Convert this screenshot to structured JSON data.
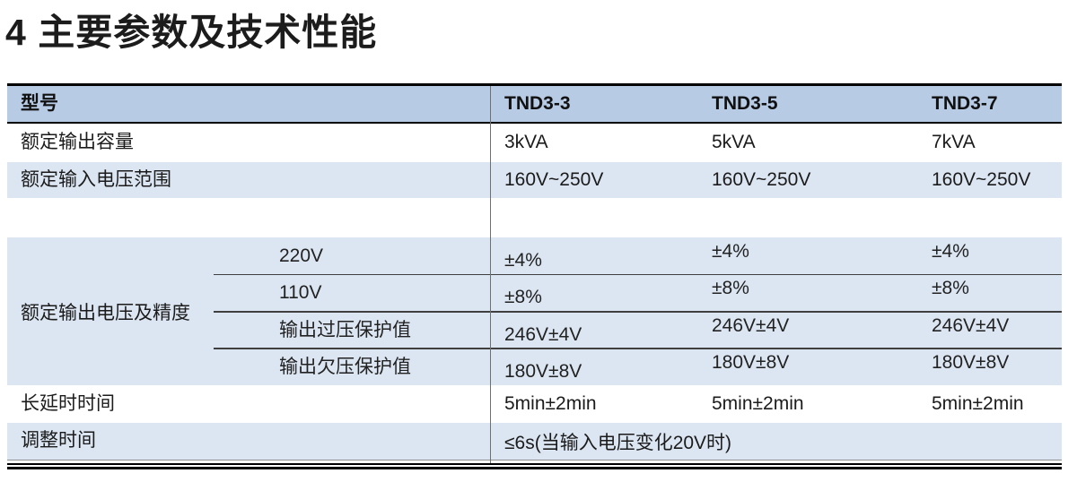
{
  "page": {
    "title": "4 主要参数及技术性能"
  },
  "colors": {
    "header_bg": "#b7cbe5",
    "stripe_bg": "#dce6f2",
    "divider": "#6f6f6f",
    "subline": "#3f3f3f"
  },
  "table": {
    "header": {
      "model_label": "型号",
      "models": [
        "TND3-3",
        "TND3-5",
        "TND3-7"
      ]
    },
    "capacity": {
      "label": "额定输出容量",
      "values": [
        "3kVA",
        "5kVA",
        "7kVA"
      ]
    },
    "input_range": {
      "label": "额定输入电压范围",
      "values": [
        "160V~250V",
        "160V~250V",
        "160V~250V"
      ]
    },
    "output_group": {
      "label": "额定输出电压及精度",
      "subrows": [
        {
          "label": "220V",
          "values": [
            "±4%",
            "±4%",
            "±4%"
          ]
        },
        {
          "label": "110V",
          "values": [
            "±8%",
            "±8%",
            "±8%"
          ]
        },
        {
          "label": "输出过压保护值",
          "values": [
            "246V±4V",
            "246V±4V",
            "246V±4V"
          ]
        },
        {
          "label": "输出欠压保护值",
          "values": [
            "180V±8V",
            "180V±8V",
            "180V±8V"
          ]
        }
      ]
    },
    "delay": {
      "label": "长延时时间",
      "values": [
        "5min±2min",
        "5min±2min",
        "5min±2min"
      ]
    },
    "adjust": {
      "label": "调整时间",
      "value": "≤6s(当输入电压变化20V时)"
    }
  }
}
